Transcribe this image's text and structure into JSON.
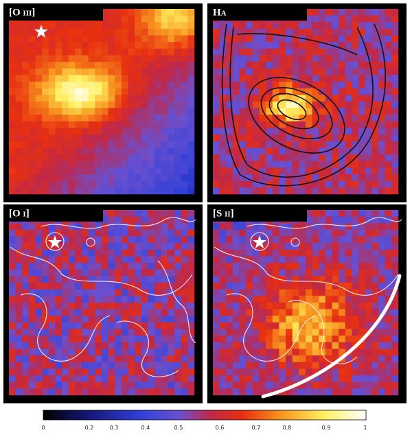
{
  "panels": [
    {
      "label": "[O iii]"
    },
    {
      "label": "Hα"
    },
    {
      "label": "[O i]"
    },
    {
      "label": "[S ii]"
    }
  ],
  "colorbar": {
    "ticks": [
      0,
      0.2,
      0.3,
      0.4,
      0.5,
      0.6,
      0.7,
      0.8,
      0.9,
      1
    ]
  }
}
